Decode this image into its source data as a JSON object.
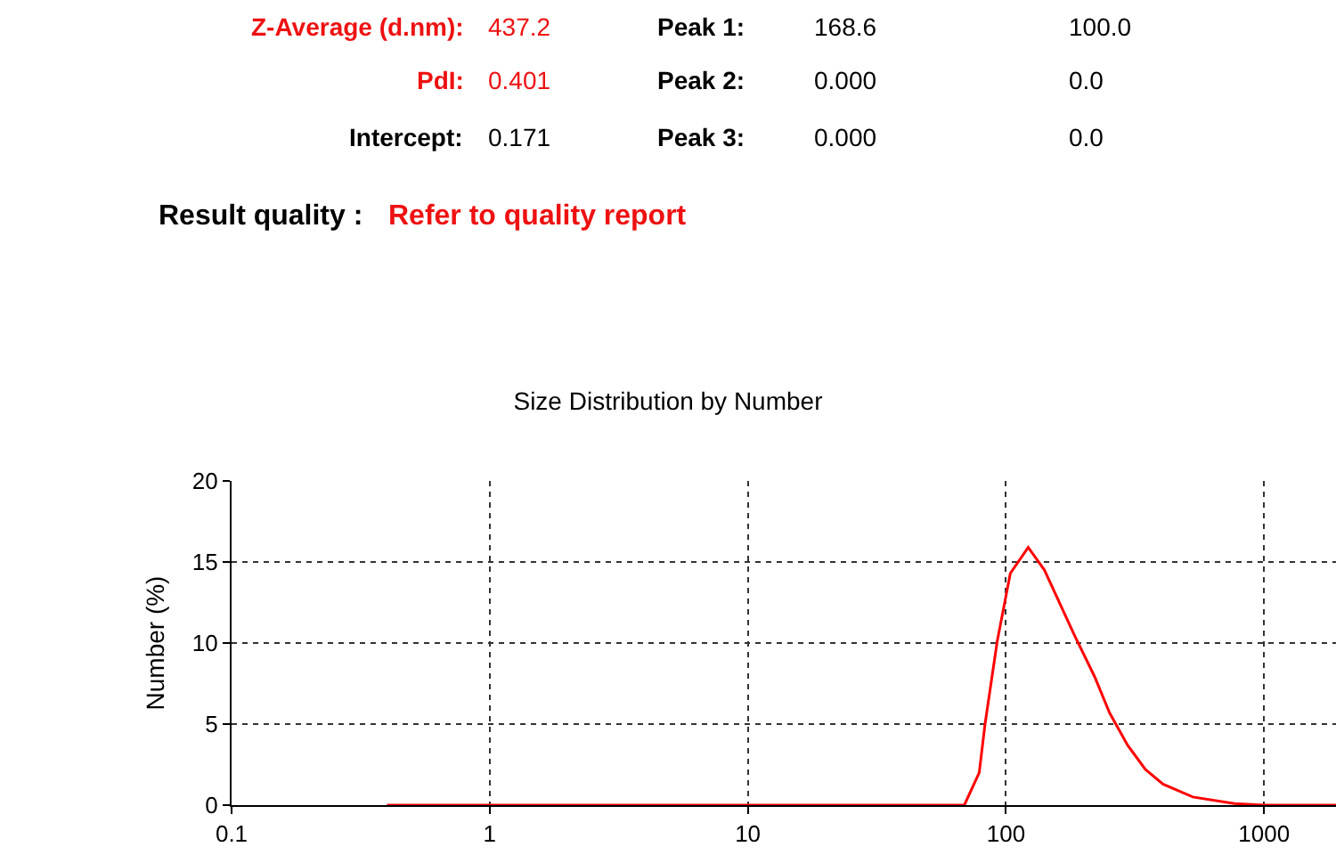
{
  "chart_data": {
    "type": "line",
    "title": "Size Distribution by Number",
    "ylabel": "Number (%)",
    "x": [
      0.4,
      69,
      78.8,
      83,
      92.5,
      104,
      122,
      141,
      184,
      221,
      252,
      296,
      347,
      406,
      530,
      767,
      1000,
      1900
    ],
    "series": [
      {
        "color": "#ff0000",
        "values": [
          0,
          0,
          2,
          5.0,
          10.1,
          14.3,
          15.9,
          14.5,
          10.5,
          7.9,
          5.7,
          3.7,
          2.2,
          1.3,
          0.5,
          0.1,
          0,
          0
        ]
      }
    ],
    "log": "x",
    "xlim": [
      0.1,
      1900
    ],
    "xticks": [
      0.1,
      1,
      10,
      100,
      1000
    ],
    "ylim": [
      0,
      20
    ],
    "yticks": [
      0,
      5,
      10,
      15,
      20
    ],
    "grid": true,
    "marker": "none",
    "line_style": "solid",
    "annotations": [
      "Z-Average (d.nm):",
      "437.2",
      "Peak 1:",
      "168.6",
      "100.0",
      "PdI:",
      "0.401",
      "Peak 2:",
      "0.000",
      "0.0",
      "Intercept:",
      "0.171",
      "Peak 3:",
      "0.000",
      "0.0",
      "Result quality :",
      "Refer to quality report"
    ]
  }
}
